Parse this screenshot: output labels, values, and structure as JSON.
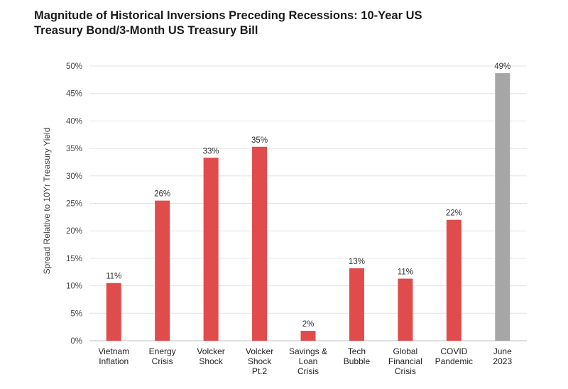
{
  "title_lines": [
    "Magnitude of Historical Inversions Preceding Recessions: 10-Year US",
    "Treasury Bond/3-Month US Treasury Bill"
  ],
  "chart_data": {
    "type": "bar",
    "title": "Magnitude of Historical Inversions Preceding Recessions: 10-Year US Treasury Bond/3-Month US Treasury Bill",
    "xlabel": "",
    "ylabel": "Spread Relative to 10Yr Treasury Yield",
    "ylim": [
      0,
      50
    ],
    "y_tick_step": 5,
    "y_tick_labels": [
      "0%",
      "5%",
      "10%",
      "15%",
      "20%",
      "25%",
      "30%",
      "35%",
      "40%",
      "45%",
      "50%"
    ],
    "grid": "horizontal",
    "legend": "none",
    "categories": [
      [
        "Vietnam",
        "Inflation"
      ],
      [
        "Energy",
        "Crisis"
      ],
      [
        "Volcker",
        "Shock"
      ],
      [
        "Volcker",
        "Shock",
        "Pt.2"
      ],
      [
        "Savings &",
        "Loan",
        "Crisis"
      ],
      [
        "Tech",
        "Bubble"
      ],
      [
        "Global",
        "Financial",
        "Crisis"
      ],
      [
        "COVID",
        "Pandemic"
      ],
      [
        "June",
        "2023"
      ]
    ],
    "values": [
      10.5,
      25.5,
      33.3,
      35.3,
      1.8,
      13.2,
      11.3,
      22.0,
      48.7
    ],
    "data_labels": [
      "11%",
      "26%",
      "33%",
      "35%",
      "2%",
      "13%",
      "11%",
      "22%",
      "49%"
    ],
    "colors": [
      "#e04b4b",
      "#e04b4b",
      "#e04b4b",
      "#e04b4b",
      "#e04b4b",
      "#e04b4b",
      "#e04b4b",
      "#e04b4b",
      "#a6a6a6"
    ]
  }
}
